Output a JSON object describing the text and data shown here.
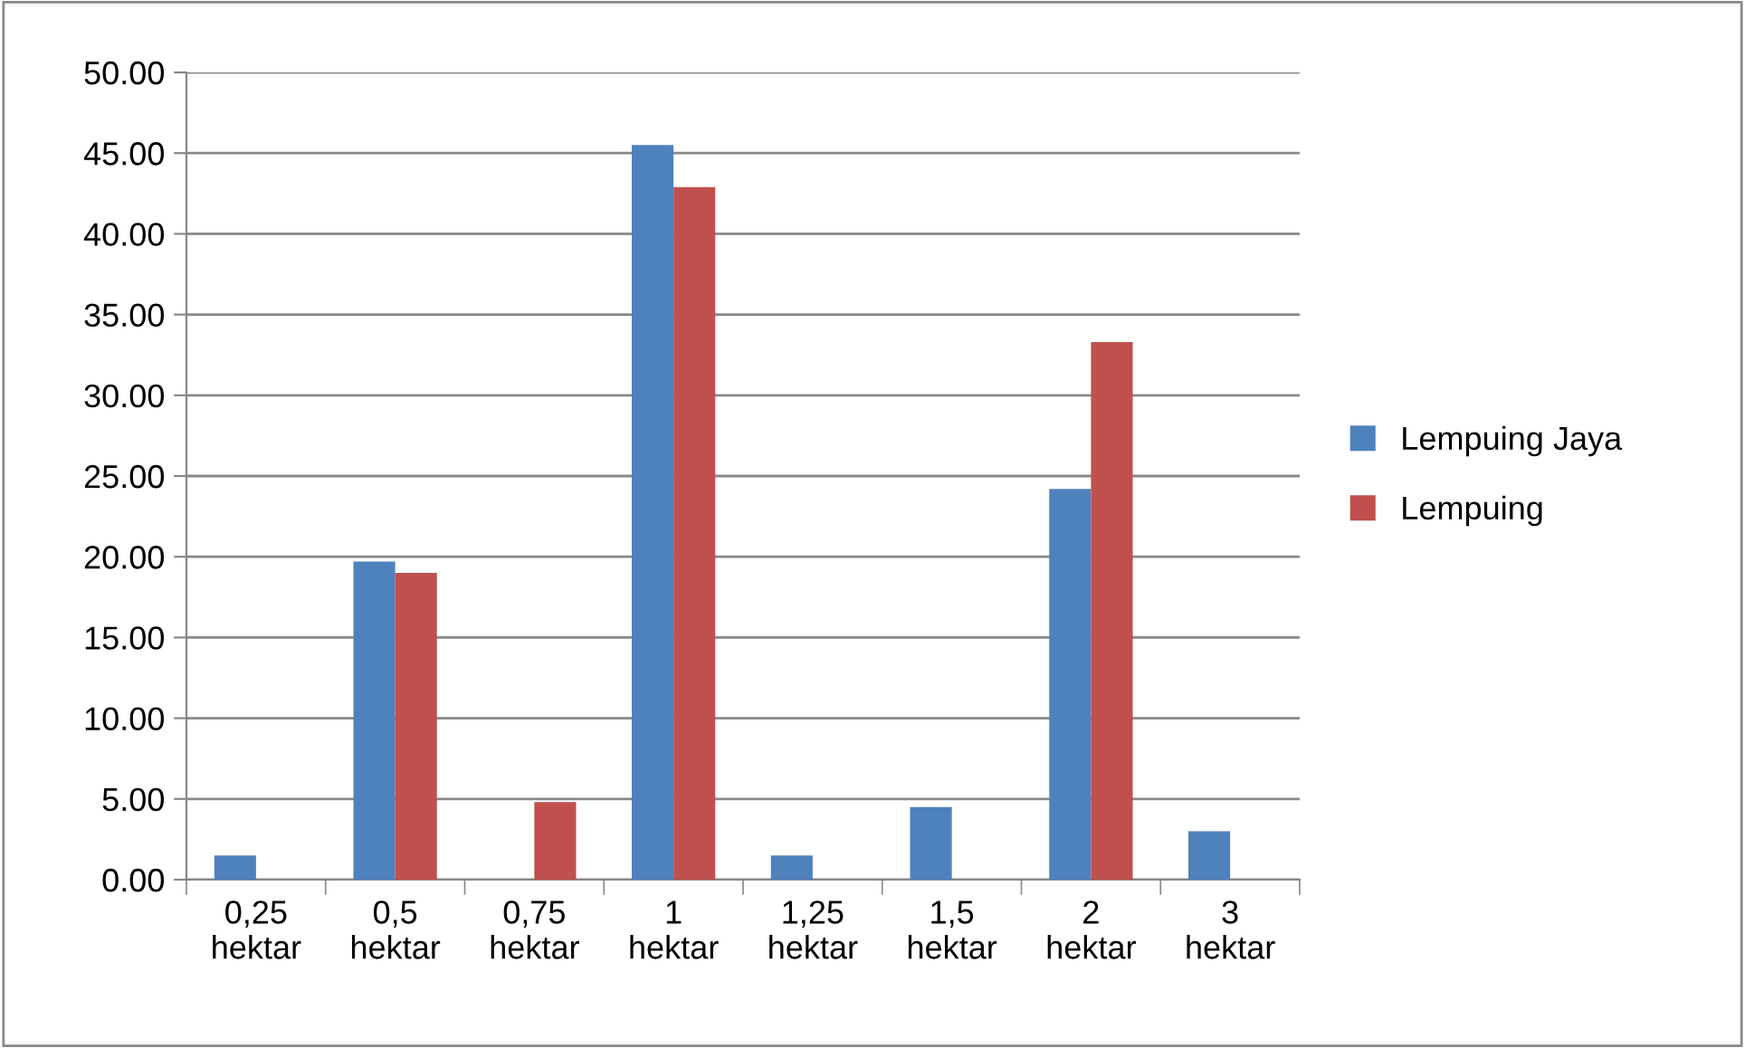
{
  "chart_data": {
    "type": "bar",
    "categories": [
      "0,25\nhektar",
      "0,5\nhektar",
      "0,75\nhektar",
      "1\nhektar",
      "1,25\nhektar",
      "1,5\nhektar",
      "2\nhektar",
      "3\nhektar"
    ],
    "series": [
      {
        "name": "Lempuing Jaya",
        "color": "#4f81bd",
        "values": [
          1.5,
          19.7,
          0,
          45.5,
          1.5,
          4.5,
          24.2,
          3.0
        ]
      },
      {
        "name": "Lempuing",
        "color": "#c0504d",
        "values": [
          0,
          19.0,
          4.8,
          42.9,
          0,
          0,
          33.3,
          0
        ]
      }
    ],
    "ylim": [
      0,
      50
    ],
    "yticks": [
      {
        "value": 0,
        "label": "0.00"
      },
      {
        "value": 5,
        "label": "5.00"
      },
      {
        "value": 10,
        "label": "10.00"
      },
      {
        "value": 15,
        "label": "15.00"
      },
      {
        "value": 20,
        "label": "20.00"
      },
      {
        "value": 25,
        "label": "25.00"
      },
      {
        "value": 30,
        "label": "30.00"
      },
      {
        "value": 35,
        "label": "35.00"
      },
      {
        "value": 40,
        "label": "40.00"
      },
      {
        "value": 45,
        "label": "45.00"
      },
      {
        "value": 50,
        "label": "50.00"
      }
    ],
    "grid": "y",
    "legend": "right"
  }
}
